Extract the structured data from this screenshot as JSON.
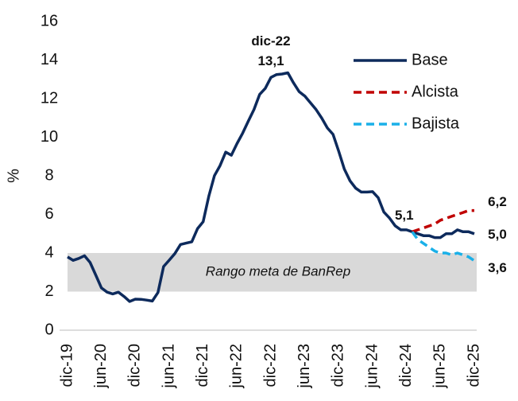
{
  "chart_data": {
    "type": "line",
    "ylabel": "%",
    "categories": [
      "dic-19",
      null,
      null,
      null,
      null,
      null,
      "jun-20",
      null,
      null,
      null,
      null,
      null,
      "dic-20",
      null,
      null,
      null,
      null,
      null,
      "jun-21",
      null,
      null,
      null,
      null,
      null,
      "dic-21",
      null,
      null,
      null,
      null,
      null,
      "jun-22",
      null,
      null,
      null,
      null,
      null,
      "dic-22",
      null,
      null,
      null,
      null,
      null,
      "jun-23",
      null,
      null,
      null,
      null,
      null,
      "dic-23",
      null,
      null,
      null,
      null,
      null,
      "jun-24",
      null,
      null,
      null,
      null,
      null,
      "dic-24",
      null,
      null,
      null,
      null,
      null,
      "jun-25",
      null,
      null,
      null,
      null,
      null,
      "dic-25"
    ],
    "series": [
      {
        "name": "Base",
        "color": "#0d2a5c",
        "dash": false,
        "values": [
          3.8,
          3.62,
          3.72,
          3.86,
          3.51,
          2.85,
          2.19,
          1.97,
          1.88,
          1.97,
          1.75,
          1.49,
          1.61,
          1.6,
          1.56,
          1.51,
          1.95,
          3.3,
          3.63,
          3.97,
          4.44,
          4.51,
          4.58,
          5.26,
          5.62,
          6.94,
          8.01,
          8.53,
          9.23,
          9.07,
          9.67,
          10.21,
          10.84,
          11.44,
          12.22,
          12.53,
          13.1,
          13.25,
          13.28,
          13.34,
          12.82,
          12.36,
          12.13,
          11.78,
          11.43,
          10.99,
          10.48,
          10.15,
          9.28,
          8.35,
          7.74,
          7.36,
          7.16,
          7.16,
          7.18,
          6.86,
          6.12,
          5.81,
          5.41,
          5.2,
          5.2,
          5.1,
          5.0,
          4.9,
          4.9,
          4.8,
          4.8,
          5.0,
          5.0,
          5.2,
          5.1,
          5.1,
          5.0
        ],
        "value_labels": [
          null,
          null,
          null,
          null,
          null,
          null,
          null,
          null,
          null,
          null,
          null,
          null,
          null,
          null,
          null,
          null,
          null,
          null,
          null,
          null,
          null,
          null,
          null,
          null,
          null,
          null,
          null,
          null,
          null,
          null,
          null,
          null,
          null,
          null,
          null,
          null,
          "13,1",
          null,
          null,
          null,
          null,
          null,
          null,
          null,
          null,
          null,
          null,
          null,
          null,
          null,
          null,
          null,
          null,
          null,
          null,
          null,
          null,
          null,
          null,
          null,
          null,
          "5,1",
          null,
          null,
          null,
          null,
          null,
          null,
          null,
          null,
          null,
          null,
          "5,0"
        ]
      },
      {
        "name": "Alcista",
        "color": "#c00000",
        "dash": true,
        "values": [
          null,
          null,
          null,
          null,
          null,
          null,
          null,
          null,
          null,
          null,
          null,
          null,
          null,
          null,
          null,
          null,
          null,
          null,
          null,
          null,
          null,
          null,
          null,
          null,
          null,
          null,
          null,
          null,
          null,
          null,
          null,
          null,
          null,
          null,
          null,
          null,
          null,
          null,
          null,
          null,
          null,
          null,
          null,
          null,
          null,
          null,
          null,
          null,
          null,
          null,
          null,
          null,
          null,
          null,
          null,
          null,
          null,
          null,
          null,
          null,
          null,
          5.1,
          5.2,
          5.3,
          5.4,
          5.5,
          5.7,
          5.8,
          5.9,
          6.0,
          6.1,
          6.2,
          6.2
        ],
        "value_labels": [
          null,
          null,
          null,
          null,
          null,
          null,
          null,
          null,
          null,
          null,
          null,
          null,
          null,
          null,
          null,
          null,
          null,
          null,
          null,
          null,
          null,
          null,
          null,
          null,
          null,
          null,
          null,
          null,
          null,
          null,
          null,
          null,
          null,
          null,
          null,
          null,
          null,
          null,
          null,
          null,
          null,
          null,
          null,
          null,
          null,
          null,
          null,
          null,
          null,
          null,
          null,
          null,
          null,
          null,
          null,
          null,
          null,
          null,
          null,
          null,
          null,
          null,
          null,
          null,
          null,
          null,
          null,
          null,
          null,
          null,
          null,
          null,
          "6,2"
        ]
      },
      {
        "name": "Bajista",
        "color": "#1ab0e8",
        "dash": true,
        "values": [
          null,
          null,
          null,
          null,
          null,
          null,
          null,
          null,
          null,
          null,
          null,
          null,
          null,
          null,
          null,
          null,
          null,
          null,
          null,
          null,
          null,
          null,
          null,
          null,
          null,
          null,
          null,
          null,
          null,
          null,
          null,
          null,
          null,
          null,
          null,
          null,
          null,
          null,
          null,
          null,
          null,
          null,
          null,
          null,
          null,
          null,
          null,
          null,
          null,
          null,
          null,
          null,
          null,
          null,
          null,
          null,
          null,
          null,
          null,
          null,
          null,
          5.1,
          4.7,
          4.5,
          4.3,
          4.1,
          4.0,
          4.0,
          3.9,
          4.0,
          3.9,
          3.8,
          3.6
        ],
        "value_labels": [
          null,
          null,
          null,
          null,
          null,
          null,
          null,
          null,
          null,
          null,
          null,
          null,
          null,
          null,
          null,
          null,
          null,
          null,
          null,
          null,
          null,
          null,
          null,
          null,
          null,
          null,
          null,
          null,
          null,
          null,
          null,
          null,
          null,
          null,
          null,
          null,
          null,
          null,
          null,
          null,
          null,
          null,
          null,
          null,
          null,
          null,
          null,
          null,
          null,
          null,
          null,
          null,
          null,
          null,
          null,
          null,
          null,
          null,
          null,
          null,
          null,
          null,
          null,
          null,
          null,
          null,
          null,
          null,
          null,
          null,
          null,
          null,
          "3,6"
        ]
      }
    ],
    "band": {
      "range": [
        2,
        4
      ],
      "label": "Rango meta de BanRep",
      "color": "#d9d9d9"
    },
    "ylim": [
      0,
      16
    ],
    "yticks": [
      0,
      2,
      4,
      6,
      8,
      10,
      12,
      14,
      16
    ],
    "grid": false,
    "legend": "upper right"
  }
}
